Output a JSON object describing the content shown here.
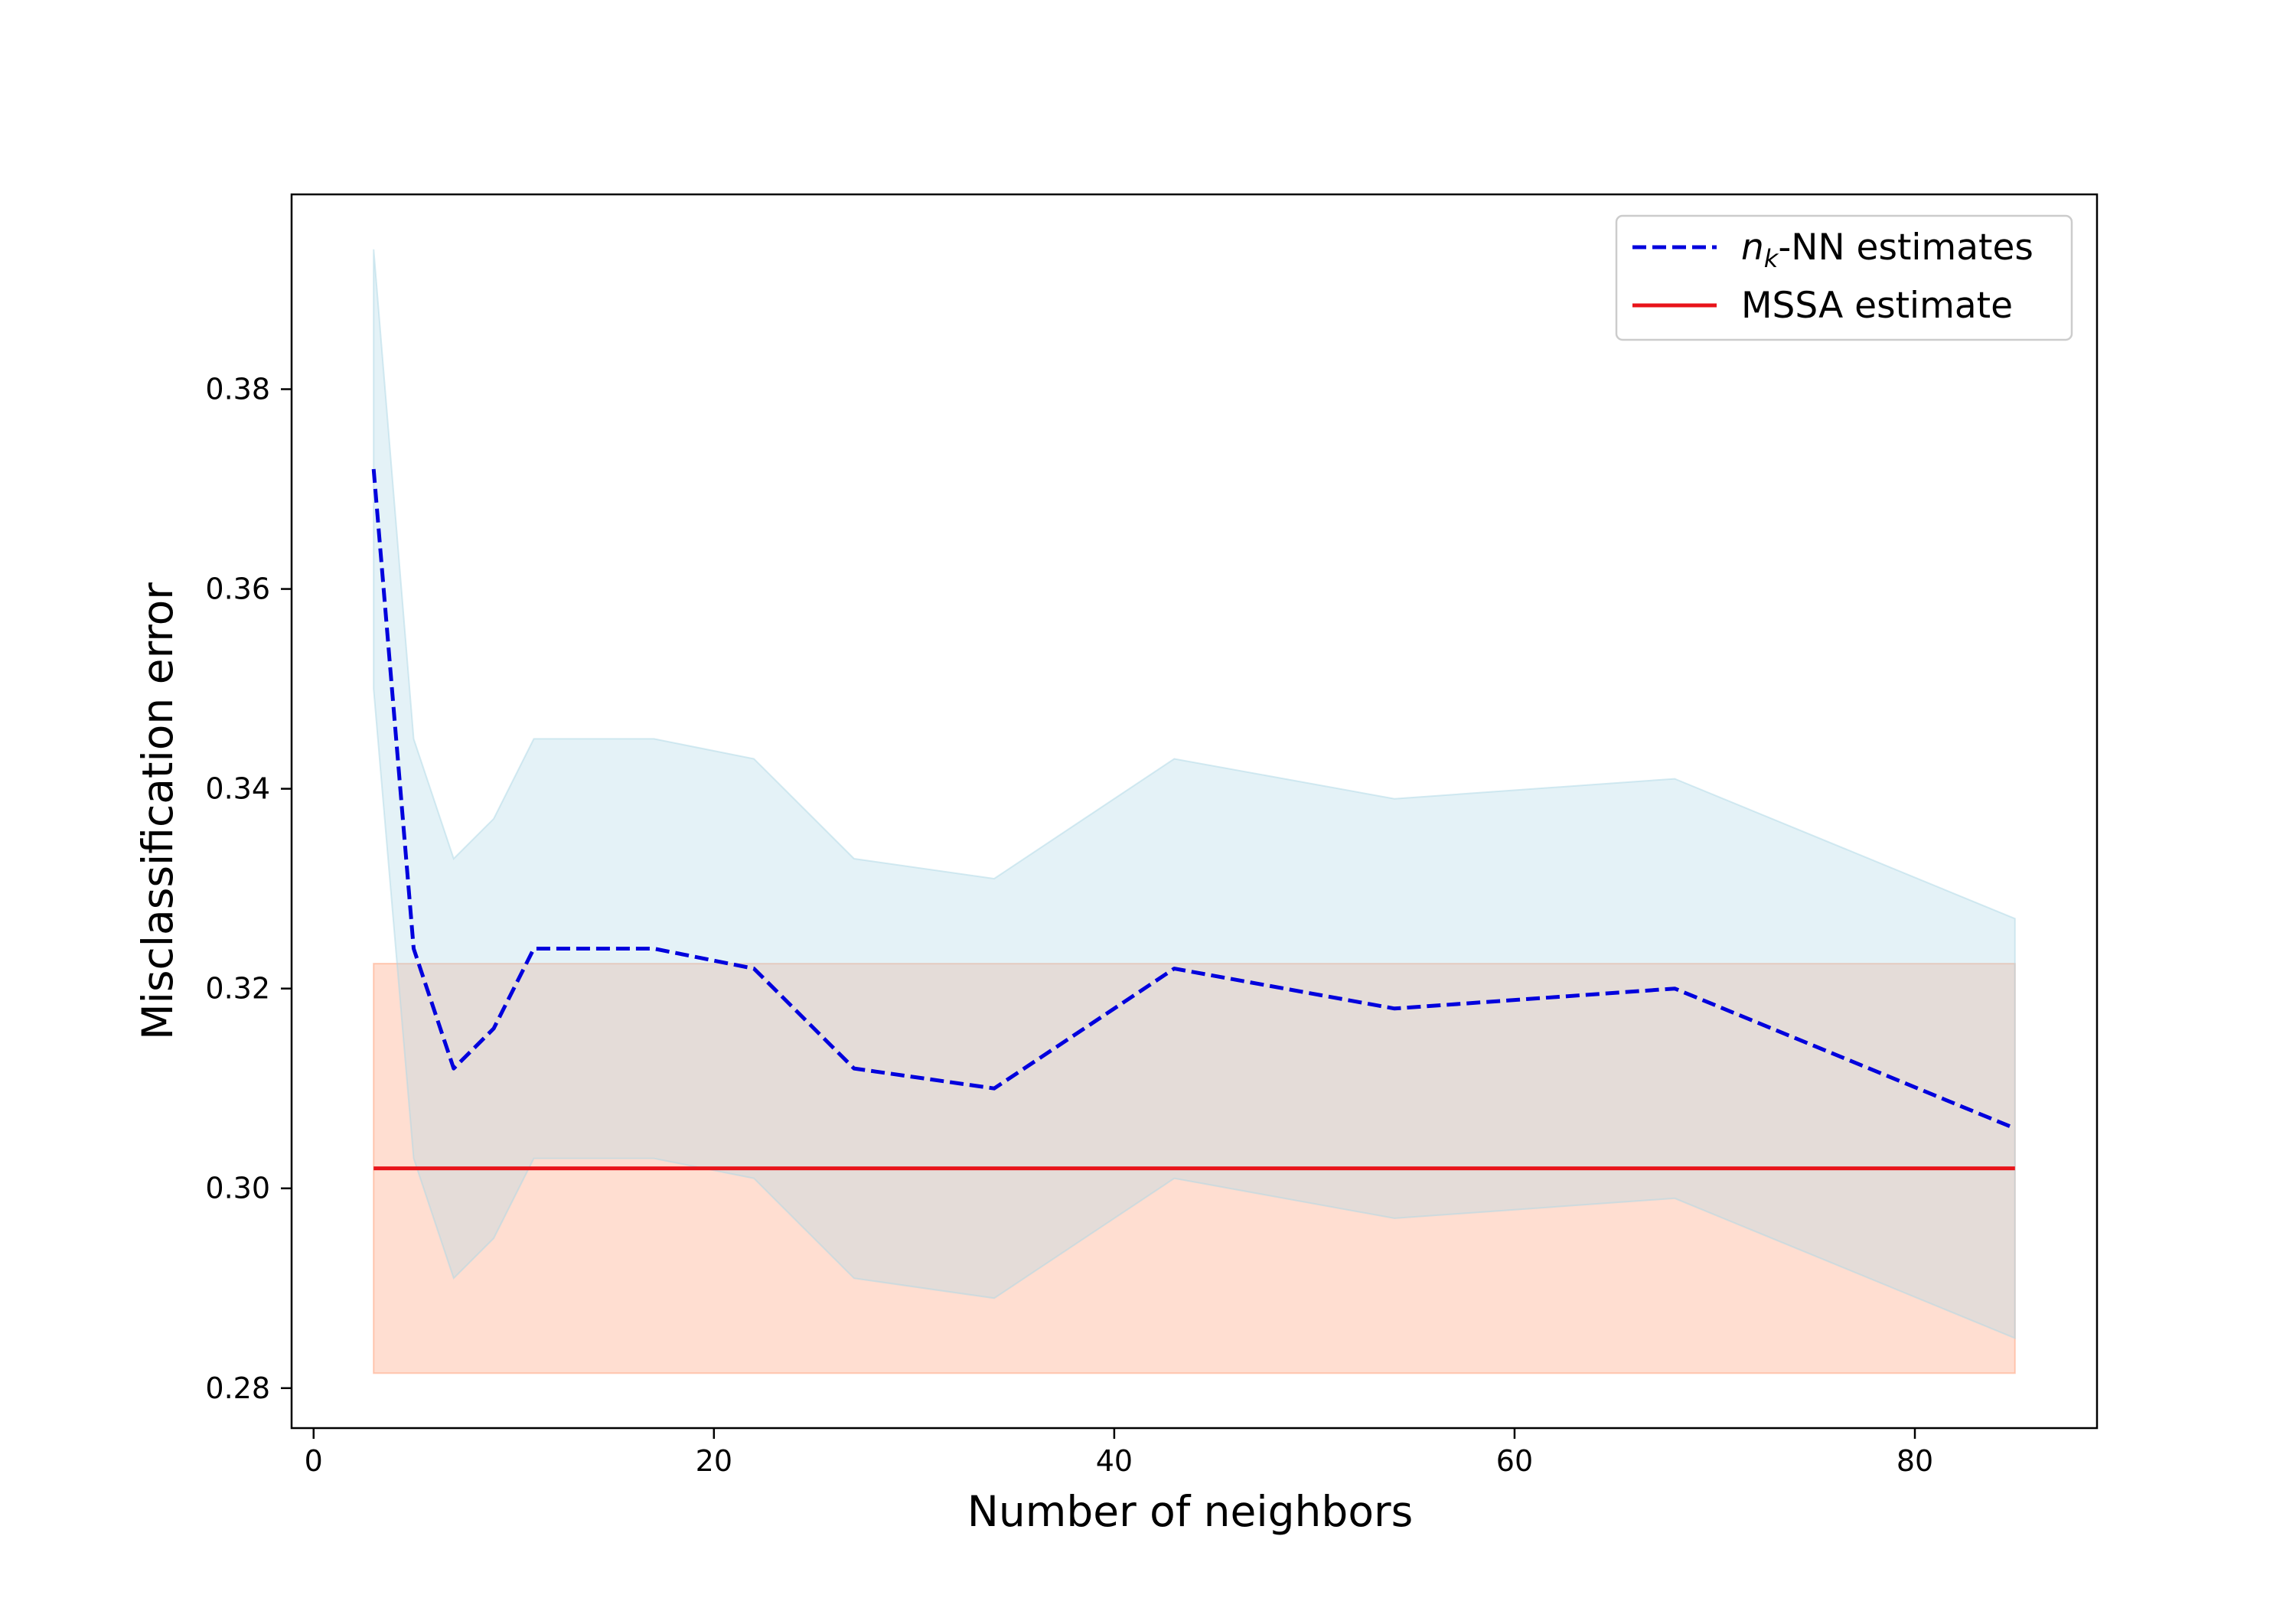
{
  "chart_data": {
    "type": "line",
    "title": "",
    "xlabel": "Number of neighbors",
    "ylabel": "Misclassification error",
    "xlim": [
      -1.1,
      89.1
    ],
    "ylim": [
      0.276,
      0.3995
    ],
    "xticks": [
      0,
      20,
      40,
      60,
      80
    ],
    "xtick_labels": [
      "0",
      "20",
      "40",
      "60",
      "80"
    ],
    "yticks": [
      0.28,
      0.3,
      0.32,
      0.34,
      0.36,
      0.38
    ],
    "ytick_labels": [
      "0.28",
      "0.30",
      "0.32",
      "0.34",
      "0.36",
      "0.38"
    ],
    "grid": false,
    "legend_position": "top-right",
    "series": [
      {
        "name": "n_k-NN estimates",
        "legend_main": "n",
        "legend_sub": "k",
        "legend_rest": "-NN estimates",
        "style": "dashed",
        "color": "#0000dd",
        "band_color": "#add8e6",
        "x": [
          3,
          5,
          7,
          9,
          11,
          17,
          22,
          27,
          34,
          43,
          54,
          68,
          85
        ],
        "values": [
          0.372,
          0.324,
          0.312,
          0.316,
          0.324,
          0.324,
          0.322,
          0.312,
          0.31,
          0.322,
          0.318,
          0.32,
          0.306
        ],
        "upper": [
          0.394,
          0.345,
          0.333,
          0.337,
          0.345,
          0.345,
          0.343,
          0.333,
          0.331,
          0.343,
          0.339,
          0.341,
          0.327
        ],
        "lower": [
          0.35,
          0.303,
          0.291,
          0.295,
          0.303,
          0.303,
          0.301,
          0.291,
          0.289,
          0.301,
          0.297,
          0.299,
          0.285
        ]
      },
      {
        "name": "MSSA estimate",
        "legend_label": "MSSA estimate",
        "style": "solid",
        "color": "#e8141a",
        "band_color": "#ffa07a",
        "x": [
          3,
          85
        ],
        "values": [
          0.302,
          0.302
        ],
        "upper": [
          0.3225,
          0.3225
        ],
        "lower": [
          0.2815,
          0.2815
        ]
      }
    ]
  }
}
